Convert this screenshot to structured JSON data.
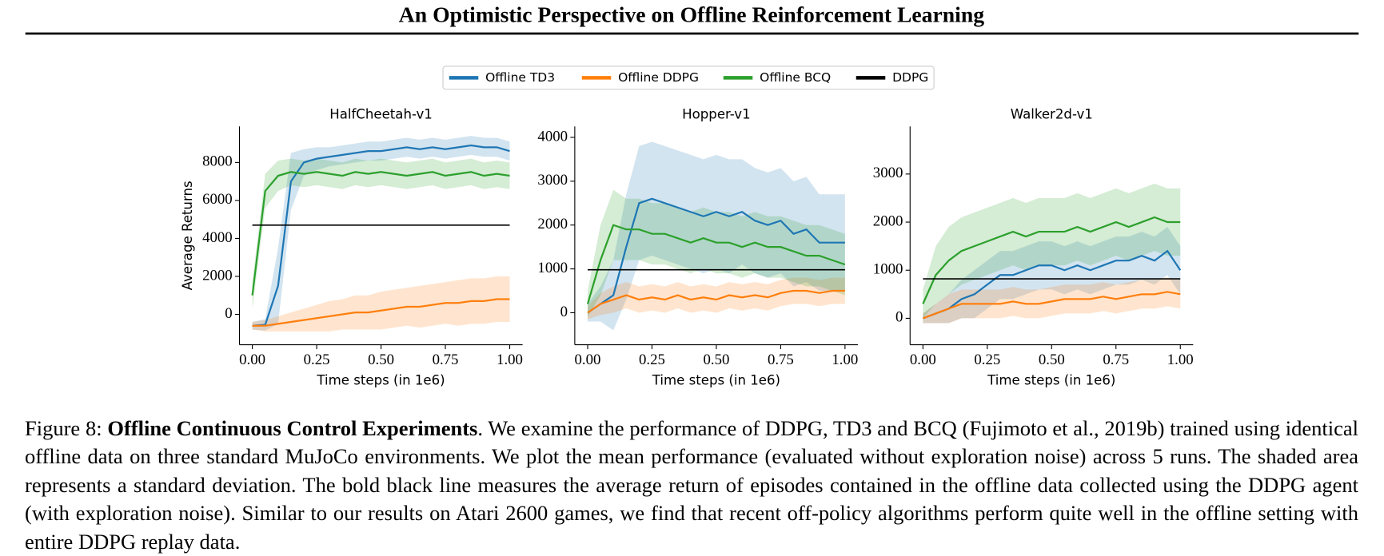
{
  "header": {
    "title": "An Optimistic Perspective on Offline Reinforcement Learning"
  },
  "chart_data": [
    {
      "type": "line",
      "title": "HalfCheetah-v1",
      "xlabel": "Time steps (in 1e6)",
      "ylabel": "Average Returns",
      "x": [
        0,
        0.05,
        0.1,
        0.15,
        0.2,
        0.25,
        0.3,
        0.35,
        0.4,
        0.45,
        0.5,
        0.55,
        0.6,
        0.65,
        0.7,
        0.75,
        0.8,
        0.85,
        0.9,
        0.95,
        1
      ],
      "xlim": [
        -0.05,
        1.05
      ],
      "ylim": [
        -1600,
        9900
      ],
      "xticks": [
        {
          "value": 0,
          "label": "0.00"
        },
        {
          "value": 0.25,
          "label": "0.25"
        },
        {
          "value": 0.5,
          "label": "0.50"
        },
        {
          "value": 0.75,
          "label": "0.75"
        },
        {
          "value": 1,
          "label": "1.00"
        }
      ],
      "yticks": [
        0,
        2000,
        4000,
        6000,
        8000
      ],
      "series": [
        {
          "name": "Offline TD3",
          "color": "#1f77b4",
          "values": [
            -600,
            -550,
            1500,
            7000,
            8000,
            8200,
            8300,
            8400,
            8500,
            8600,
            8600,
            8700,
            8800,
            8700,
            8800,
            8700,
            8800,
            8900,
            8800,
            8800,
            8600
          ],
          "std": [
            200,
            300,
            2000,
            1500,
            700,
            600,
            500,
            500,
            500,
            500,
            500,
            500,
            500,
            500,
            500,
            500,
            500,
            500,
            500,
            500,
            500
          ]
        },
        {
          "name": "Offline DDPG",
          "color": "#ff7f0e",
          "values": [
            -600,
            -600,
            -500,
            -400,
            -300,
            -200,
            -100,
            0,
            100,
            100,
            200,
            300,
            400,
            400,
            500,
            600,
            600,
            700,
            700,
            800,
            800
          ],
          "std": [
            200,
            300,
            400,
            500,
            600,
            700,
            800,
            800,
            900,
            900,
            1000,
            1000,
            1000,
            1100,
            1100,
            1100,
            1200,
            1200,
            1200,
            1200,
            1200
          ]
        },
        {
          "name": "Offline BCQ",
          "color": "#2ca02c",
          "values": [
            1000,
            6500,
            7300,
            7500,
            7400,
            7500,
            7400,
            7300,
            7500,
            7400,
            7500,
            7400,
            7300,
            7400,
            7500,
            7300,
            7400,
            7500,
            7300,
            7400,
            7300
          ],
          "std": [
            700,
            900,
            800,
            700,
            700,
            700,
            700,
            700,
            700,
            700,
            700,
            700,
            700,
            700,
            700,
            700,
            700,
            700,
            700,
            700,
            700
          ]
        },
        {
          "name": "DDPG",
          "color": "#000000",
          "values": [
            4700,
            4700,
            4700,
            4700,
            4700,
            4700,
            4700,
            4700,
            4700,
            4700,
            4700,
            4700,
            4700,
            4700,
            4700,
            4700,
            4700,
            4700,
            4700,
            4700,
            4700
          ]
        }
      ]
    },
    {
      "type": "line",
      "title": "Hopper-v1",
      "xlabel": "Time steps (in 1e6)",
      "x": [
        0,
        0.05,
        0.1,
        0.15,
        0.2,
        0.25,
        0.3,
        0.35,
        0.4,
        0.45,
        0.5,
        0.55,
        0.6,
        0.65,
        0.7,
        0.75,
        0.8,
        0.85,
        0.9,
        0.95,
        1
      ],
      "xlim": [
        -0.05,
        1.05
      ],
      "ylim": [
        -730,
        4250
      ],
      "xticks": [
        {
          "value": 0,
          "label": "0.00"
        },
        {
          "value": 0.25,
          "label": "0.25"
        },
        {
          "value": 0.5,
          "label": "0.50"
        },
        {
          "value": 0.75,
          "label": "0.75"
        },
        {
          "value": 1,
          "label": "1.00"
        }
      ],
      "yticks": [
        0,
        1000,
        2000,
        3000,
        4000
      ],
      "series": [
        {
          "name": "Offline TD3",
          "color": "#1f77b4",
          "values": [
            0,
            200,
            400,
            1500,
            2500,
            2600,
            2500,
            2400,
            2300,
            2200,
            2300,
            2200,
            2300,
            2100,
            2000,
            2100,
            1800,
            1900,
            1600,
            1600,
            1600
          ],
          "std": [
            200,
            400,
            800,
            1200,
            1300,
            1300,
            1300,
            1300,
            1300,
            1300,
            1300,
            1300,
            1200,
            1200,
            1200,
            1200,
            1200,
            1200,
            1100,
            1100,
            1100
          ]
        },
        {
          "name": "Offline DDPG",
          "color": "#ff7f0e",
          "values": [
            0,
            200,
            300,
            400,
            300,
            350,
            300,
            400,
            300,
            350,
            300,
            400,
            350,
            400,
            350,
            450,
            500,
            500,
            450,
            500,
            500
          ],
          "std": [
            150,
            250,
            300,
            300,
            300,
            300,
            300,
            300,
            300,
            300,
            300,
            300,
            300,
            300,
            300,
            300,
            300,
            300,
            300,
            300,
            300
          ]
        },
        {
          "name": "Offline BCQ",
          "color": "#2ca02c",
          "values": [
            200,
            1200,
            2000,
            1900,
            1900,
            1800,
            1800,
            1700,
            1600,
            1700,
            1600,
            1600,
            1500,
            1600,
            1500,
            1500,
            1400,
            1300,
            1300,
            1200,
            1100
          ],
          "std": [
            300,
            800,
            800,
            700,
            700,
            700,
            700,
            700,
            700,
            700,
            700,
            700,
            700,
            700,
            700,
            700,
            700,
            700,
            700,
            700,
            700
          ]
        },
        {
          "name": "DDPG",
          "color": "#000000",
          "values": [
            980,
            980,
            980,
            980,
            980,
            980,
            980,
            980,
            980,
            980,
            980,
            980,
            980,
            980,
            980,
            980,
            980,
            980,
            980,
            980,
            980
          ]
        }
      ]
    },
    {
      "type": "line",
      "title": "Walker2d-v1",
      "xlabel": "Time steps (in 1e6)",
      "x": [
        0,
        0.05,
        0.1,
        0.15,
        0.2,
        0.25,
        0.3,
        0.35,
        0.4,
        0.45,
        0.5,
        0.55,
        0.6,
        0.65,
        0.7,
        0.75,
        0.8,
        0.85,
        0.9,
        0.95,
        1
      ],
      "xlim": [
        -0.05,
        1.05
      ],
      "ylim": [
        -550,
        3990
      ],
      "xticks": [
        {
          "value": 0,
          "label": "0.00"
        },
        {
          "value": 0.25,
          "label": "0.25"
        },
        {
          "value": 0.5,
          "label": "0.50"
        },
        {
          "value": 0.75,
          "label": "0.75"
        },
        {
          "value": 1,
          "label": "1.00"
        }
      ],
      "yticks": [
        0,
        1000,
        2000,
        3000
      ],
      "series": [
        {
          "name": "Offline TD3",
          "color": "#1f77b4",
          "values": [
            0,
            100,
            200,
            400,
            500,
            700,
            900,
            900,
            1000,
            1100,
            1100,
            1000,
            1100,
            1000,
            1100,
            1200,
            1200,
            1300,
            1200,
            1400,
            1000
          ],
          "std": [
            100,
            200,
            300,
            400,
            500,
            500,
            500,
            500,
            500,
            500,
            500,
            500,
            500,
            500,
            500,
            500,
            500,
            500,
            500,
            500,
            500
          ]
        },
        {
          "name": "Offline DDPG",
          "color": "#ff7f0e",
          "values": [
            0,
            100,
            200,
            300,
            300,
            300,
            300,
            350,
            300,
            300,
            350,
            400,
            400,
            400,
            450,
            400,
            450,
            500,
            500,
            550,
            500
          ],
          "std": [
            100,
            200,
            300,
            300,
            300,
            300,
            300,
            300,
            300,
            300,
            300,
            300,
            300,
            300,
            300,
            300,
            300,
            300,
            300,
            300,
            300
          ]
        },
        {
          "name": "Offline BCQ",
          "color": "#2ca02c",
          "values": [
            300,
            900,
            1200,
            1400,
            1500,
            1600,
            1700,
            1800,
            1700,
            1800,
            1800,
            1800,
            1900,
            1800,
            1900,
            2000,
            1900,
            2000,
            2100,
            2000,
            2000
          ],
          "std": [
            300,
            600,
            700,
            700,
            700,
            700,
            700,
            700,
            700,
            700,
            700,
            700,
            700,
            700,
            700,
            700,
            700,
            700,
            700,
            700,
            700
          ]
        },
        {
          "name": "DDPG",
          "color": "#000000",
          "values": [
            820,
            820,
            820,
            820,
            820,
            820,
            820,
            820,
            820,
            820,
            820,
            820,
            820,
            820,
            820,
            820,
            820,
            820,
            820,
            820,
            820
          ]
        }
      ]
    }
  ],
  "caption": {
    "label": "Figure 8:",
    "bold": "Offline Continuous Control Experiments",
    "text": ". We examine the performance of DDPG, TD3 and BCQ (Fujimoto et al., 2019b) trained using identical offline data on three standard MuJoCo environments. We plot the mean performance (evaluated without exploration noise) across 5 runs.  The shaded area represents a standard deviation.  The bold black line measures the average return of episodes contained in the offline data collected using the DDPG agent (with exploration noise). Similar to our results on Atari 2600 games, we find that recent off-policy algorithms perform quite well in the offline setting with entire DDPG replay data."
  }
}
